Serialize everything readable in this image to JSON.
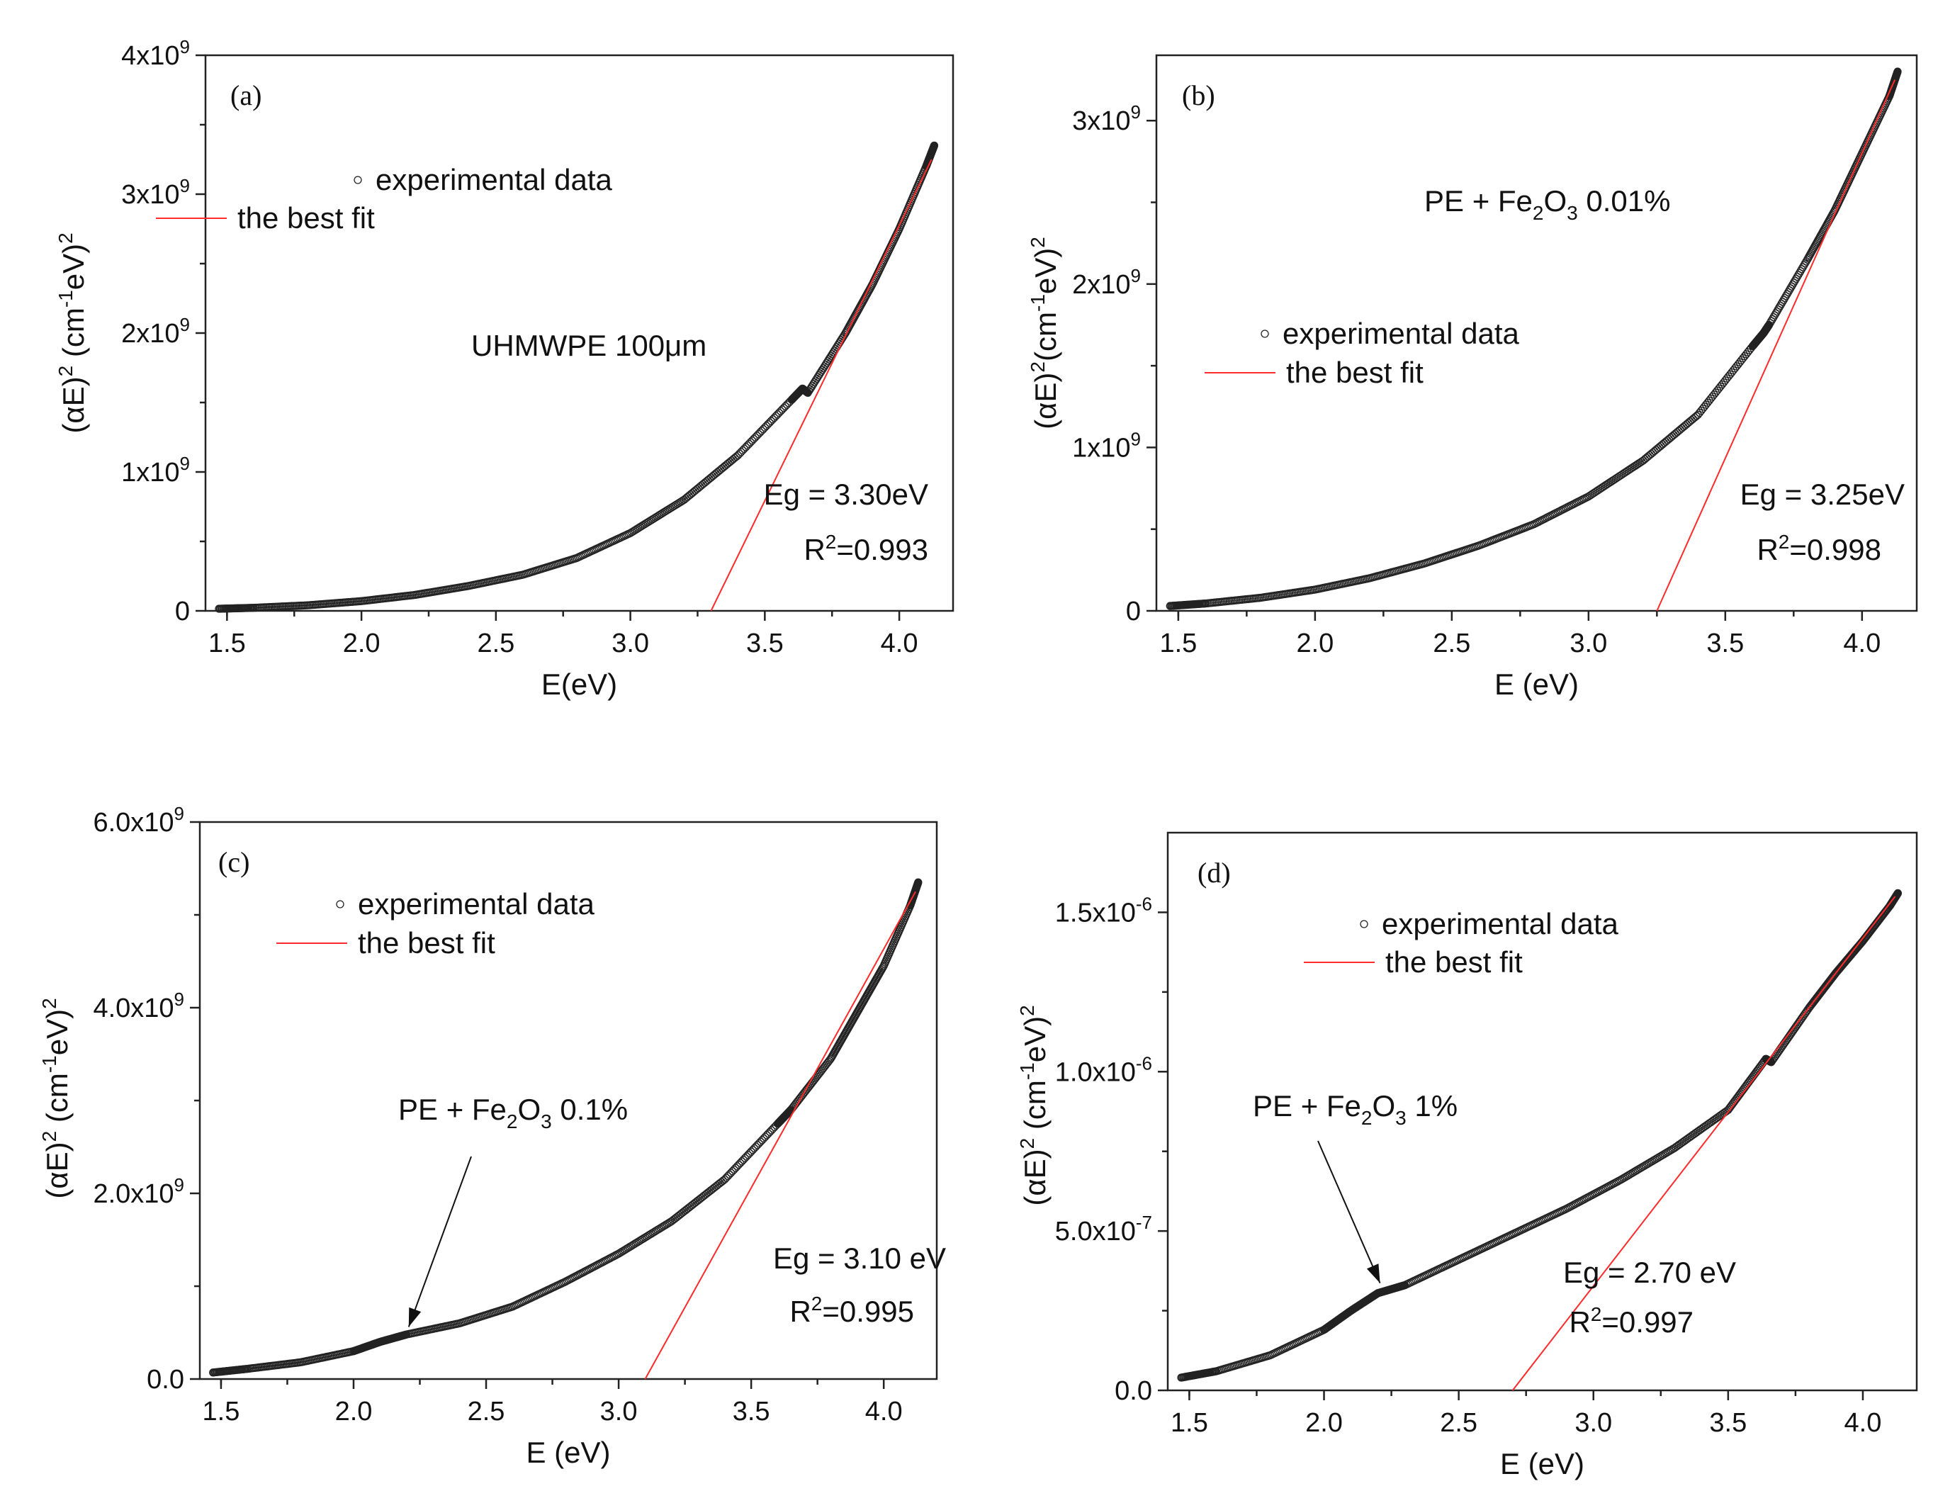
{
  "colors": {
    "data": "#222222",
    "fit": "#ff2a2a",
    "axis": "#222222"
  },
  "chart_data": [
    {
      "type": "scatter",
      "panel_label": "(a)",
      "xlabel": "E(eV)",
      "ylabel_parts": [
        "(αE)",
        "2",
        " (cm",
        "-1",
        "eV)",
        "2"
      ],
      "xlim": [
        1.42,
        4.2
      ],
      "ylim": [
        0,
        4000000000.0
      ],
      "xticks": [
        1.5,
        2.0,
        2.5,
        3.0,
        3.5,
        4.0
      ],
      "xtick_labels": [
        "1.5",
        "2.0",
        "2.5",
        "3.0",
        "3.5",
        "4.0"
      ],
      "yticks": [
        0,
        1000000000.0,
        2000000000.0,
        3000000000.0,
        4000000000.0
      ],
      "ytick_labels": [
        {
          "base": "0",
          "exp": ""
        },
        {
          "base": "1x10",
          "exp": "9"
        },
        {
          "base": "2x10",
          "exp": "9"
        },
        {
          "base": "3x10",
          "exp": "9"
        },
        {
          "base": "4x10",
          "exp": "9"
        }
      ],
      "legend": {
        "data_label": "experimental data",
        "fit_label": "the best fit"
      },
      "sample_parts": [
        "UHMWPE 100μm"
      ],
      "eg_text": "Eg = 3.30eV",
      "r2_parts": [
        "R",
        "2",
        "=0.993"
      ],
      "series": {
        "name": "experimental data",
        "x": [
          1.47,
          1.6,
          1.8,
          2.0,
          2.2,
          2.4,
          2.6,
          2.8,
          3.0,
          3.2,
          3.4,
          3.6,
          3.64,
          3.66,
          3.8,
          3.9,
          4.0,
          4.1,
          4.13
        ],
        "y": [
          15000000.0,
          22000000.0,
          40000000.0,
          70000000.0,
          115000000.0,
          180000000.0,
          260000000.0,
          380000000.0,
          560000000.0,
          800000000.0,
          1120000000.0,
          1520000000.0,
          1600000000.0,
          1570000000.0,
          2000000000.0,
          2350000000.0,
          2750000000.0,
          3200000000.0,
          3350000000.0
        ]
      },
      "fit": {
        "eg": 3.3,
        "x_end": 4.12,
        "y_end": 3250000000.0
      }
    },
    {
      "type": "scatter",
      "panel_label": "(b)",
      "xlabel": "E (eV)",
      "ylabel_parts": [
        "(αE)",
        "2",
        "(cm",
        "-1",
        "eV)",
        "2"
      ],
      "xlim": [
        1.42,
        4.2
      ],
      "ylim": [
        0,
        3400000000.0
      ],
      "xticks": [
        1.5,
        2.0,
        2.5,
        3.0,
        3.5,
        4.0
      ],
      "xtick_labels": [
        "1.5",
        "2.0",
        "2.5",
        "3.0",
        "3.5",
        "4.0"
      ],
      "yticks": [
        0,
        1000000000.0,
        2000000000.0,
        3000000000.0
      ],
      "ytick_labels": [
        {
          "base": "0",
          "exp": ""
        },
        {
          "base": "1x10",
          "exp": "9"
        },
        {
          "base": "2x10",
          "exp": "9"
        },
        {
          "base": "3x10",
          "exp": "9"
        }
      ],
      "legend": {
        "data_label": "experimental data",
        "fit_label": "the best fit"
      },
      "sample_parts": [
        "PE + Fe",
        "2",
        "O",
        "3",
        " 0.01%"
      ],
      "eg_text": "Eg = 3.25eV",
      "r2_parts": [
        "R",
        "2",
        "=0.998"
      ],
      "series": {
        "name": "experimental data",
        "x": [
          1.47,
          1.6,
          1.8,
          2.0,
          2.2,
          2.4,
          2.6,
          2.8,
          3.0,
          3.2,
          3.4,
          3.6,
          3.64,
          3.66,
          3.8,
          3.9,
          4.0,
          4.1,
          4.13
        ],
        "y": [
          30000000.0,
          45000000.0,
          80000000.0,
          130000000.0,
          200000000.0,
          290000000.0,
          400000000.0,
          530000000.0,
          700000000.0,
          920000000.0,
          1200000000.0,
          1620000000.0,
          1700000000.0,
          1750000000.0,
          2150000000.0,
          2450000000.0,
          2800000000.0,
          3150000000.0,
          3300000000.0
        ]
      },
      "fit": {
        "eg": 3.25,
        "x_end": 4.12,
        "y_end": 3250000000.0
      }
    },
    {
      "type": "scatter",
      "panel_label": "(c)",
      "xlabel": "E (eV)",
      "ylabel_parts": [
        "(αE)",
        "2",
        " (cm",
        "-1",
        "eV)",
        "2"
      ],
      "xlim": [
        1.42,
        4.2
      ],
      "ylim": [
        0,
        6000000000.0
      ],
      "xticks": [
        1.5,
        2.0,
        2.5,
        3.0,
        3.5,
        4.0
      ],
      "xtick_labels": [
        "1.5",
        "2.0",
        "2.5",
        "3.0",
        "3.5",
        "4.0"
      ],
      "yticks": [
        0,
        2000000000.0,
        4000000000.0,
        6000000000.0
      ],
      "ytick_labels": [
        {
          "base": "0.0",
          "exp": ""
        },
        {
          "base": "2.0x10",
          "exp": "9"
        },
        {
          "base": "4.0x10",
          "exp": "9"
        },
        {
          "base": "6.0x10",
          "exp": "9"
        }
      ],
      "legend": {
        "data_label": "experimental data",
        "fit_label": "the best fit"
      },
      "sample_parts": [
        "PE + Fe",
        "2",
        "O",
        "3",
        " 0.1%"
      ],
      "arrow_target": [
        2.2,
        470000000.0
      ],
      "eg_text": "Eg = 3.10 eV",
      "r2_parts": [
        "R",
        "2",
        "=0.995"
      ],
      "series": {
        "name": "experimental data",
        "x": [
          1.47,
          1.6,
          1.8,
          2.0,
          2.1,
          2.2,
          2.4,
          2.6,
          2.8,
          3.0,
          3.2,
          3.4,
          3.6,
          3.65,
          3.8,
          3.9,
          4.0,
          4.1,
          4.13
        ],
        "y": [
          70000000.0,
          110000000.0,
          180000000.0,
          300000000.0,
          400000000.0,
          480000000.0,
          600000000.0,
          780000000.0,
          1050000000.0,
          1350000000.0,
          1700000000.0,
          2150000000.0,
          2750000000.0,
          2900000000.0,
          3450000000.0,
          3950000000.0,
          4450000000.0,
          5100000000.0,
          5350000000.0
        ]
      },
      "fit": {
        "eg": 3.1,
        "x_end": 4.12,
        "y_end": 5250000000.0
      }
    },
    {
      "type": "scatter",
      "panel_label": "(d)",
      "xlabel": "E (eV)",
      "ylabel_parts": [
        "(αE)",
        "2",
        " (cm",
        "-1",
        "eV)",
        "2"
      ],
      "xlim": [
        1.42,
        4.2
      ],
      "ylim": [
        0,
        1.75e-06
      ],
      "xticks": [
        1.5,
        2.0,
        2.5,
        3.0,
        3.5,
        4.0
      ],
      "xtick_labels": [
        "1.5",
        "2.0",
        "2.5",
        "3.0",
        "3.5",
        "4.0"
      ],
      "yticks": [
        0,
        5e-07,
        1e-06,
        1.5e-06
      ],
      "ytick_labels": [
        {
          "base": "0.0",
          "exp": ""
        },
        {
          "base": "5.0x10",
          "exp": "-7"
        },
        {
          "base": "1.0x10",
          "exp": "-6"
        },
        {
          "base": "1.5x10",
          "exp": "-6"
        }
      ],
      "legend": {
        "data_label": "experimental data",
        "fit_label": "the best fit"
      },
      "sample_parts": [
        "PE + Fe",
        "2",
        "O",
        "3",
        " 1%"
      ],
      "arrow_target": [
        2.2,
        3.1e-07
      ],
      "eg_text": "Eg = 2.70 eV",
      "r2_parts": [
        "R",
        "2",
        "=0.997"
      ],
      "series": {
        "name": "experimental data",
        "x": [
          1.47,
          1.6,
          1.8,
          2.0,
          2.1,
          2.2,
          2.3,
          2.5,
          2.7,
          2.9,
          3.1,
          3.3,
          3.5,
          3.64,
          3.66,
          3.8,
          3.9,
          4.0,
          4.1,
          4.13
        ],
        "y": [
          4e-08,
          6e-08,
          1.1e-07,
          1.9e-07,
          2.5e-07,
          3.05e-07,
          3.3e-07,
          4.1e-07,
          4.9e-07,
          5.7e-07,
          6.6e-07,
          7.6e-07,
          8.8e-07,
          1.04e-06,
          1.03e-06,
          1.2e-06,
          1.31e-06,
          1.41e-06,
          1.52e-06,
          1.56e-06
        ]
      },
      "fit": {
        "eg": 2.7,
        "x_end": 4.12,
        "y_end": 1.55e-06
      }
    }
  ]
}
